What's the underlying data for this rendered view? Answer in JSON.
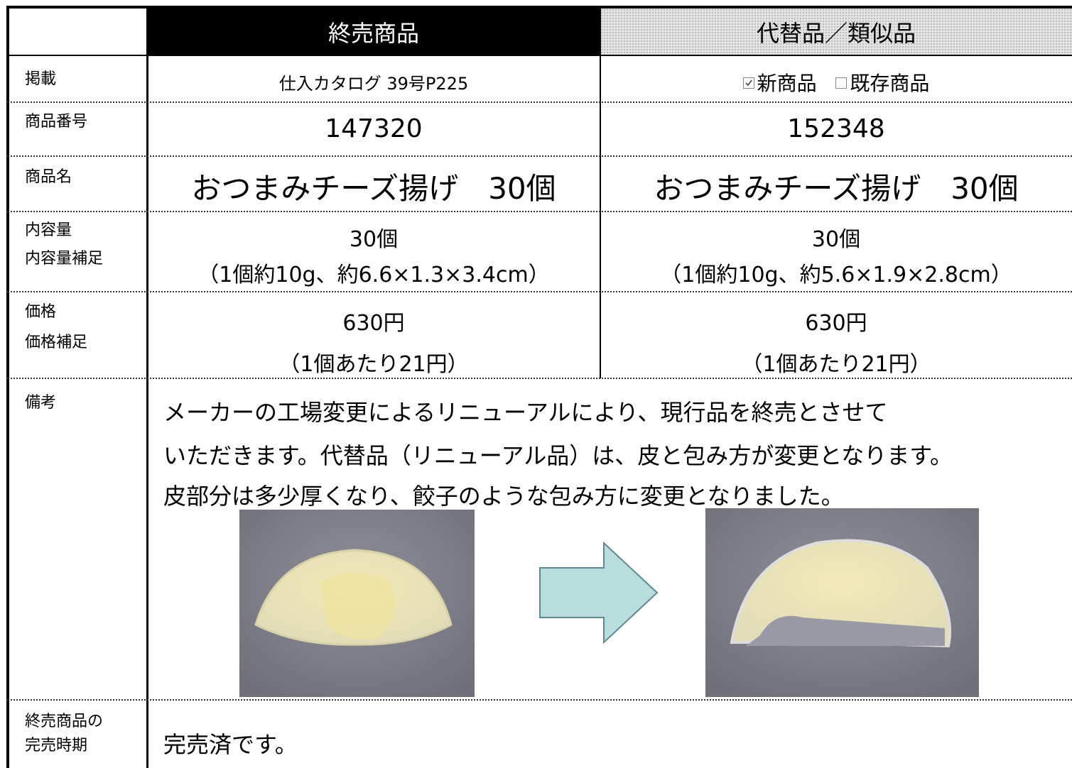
{
  "header": {
    "old": "終売商品",
    "new": "代替品／類似品"
  },
  "rows": {
    "listing": {
      "label": "掲載",
      "old": "仕入カタログ 39号P225",
      "new": {
        "options": [
          {
            "text": "新商品",
            "checked": true
          },
          {
            "text": "既存商品",
            "checked": false
          }
        ]
      }
    },
    "number": {
      "label": "商品番号",
      "old": "147320",
      "new": "152348"
    },
    "name": {
      "label": "商品名",
      "old": "おつまみチーズ揚げ　30個",
      "new": "おつまみチーズ揚げ　30個"
    },
    "contents": {
      "label": [
        "内容量",
        "内容量補足"
      ],
      "old": [
        "30個",
        "（1個約10g、約6.6×1.3×3.4cm）"
      ],
      "new": [
        "30個",
        "（1個約10g、約5.6×1.9×2.8cm）"
      ]
    },
    "price": {
      "label": [
        "価格",
        "価格補足"
      ],
      "old": [
        "630円",
        "（1個あたり21円）"
      ],
      "new": [
        "630円",
        "（1個あたり21円）"
      ]
    },
    "notes": {
      "label": "備考",
      "text": [
        "メーカーの工場変更によるリニューアルにより、現行品を終売とさせて",
        "いただきます。代替品（リニューアル品）は、皮と包み方が変更となります。",
        "皮部分は多少厚くなり、餃子のような包み方に変更となりました。"
      ]
    },
    "soldout": {
      "label": [
        "終売商品の",
        "完売時期"
      ],
      "text": "完売済です。"
    }
  }
}
